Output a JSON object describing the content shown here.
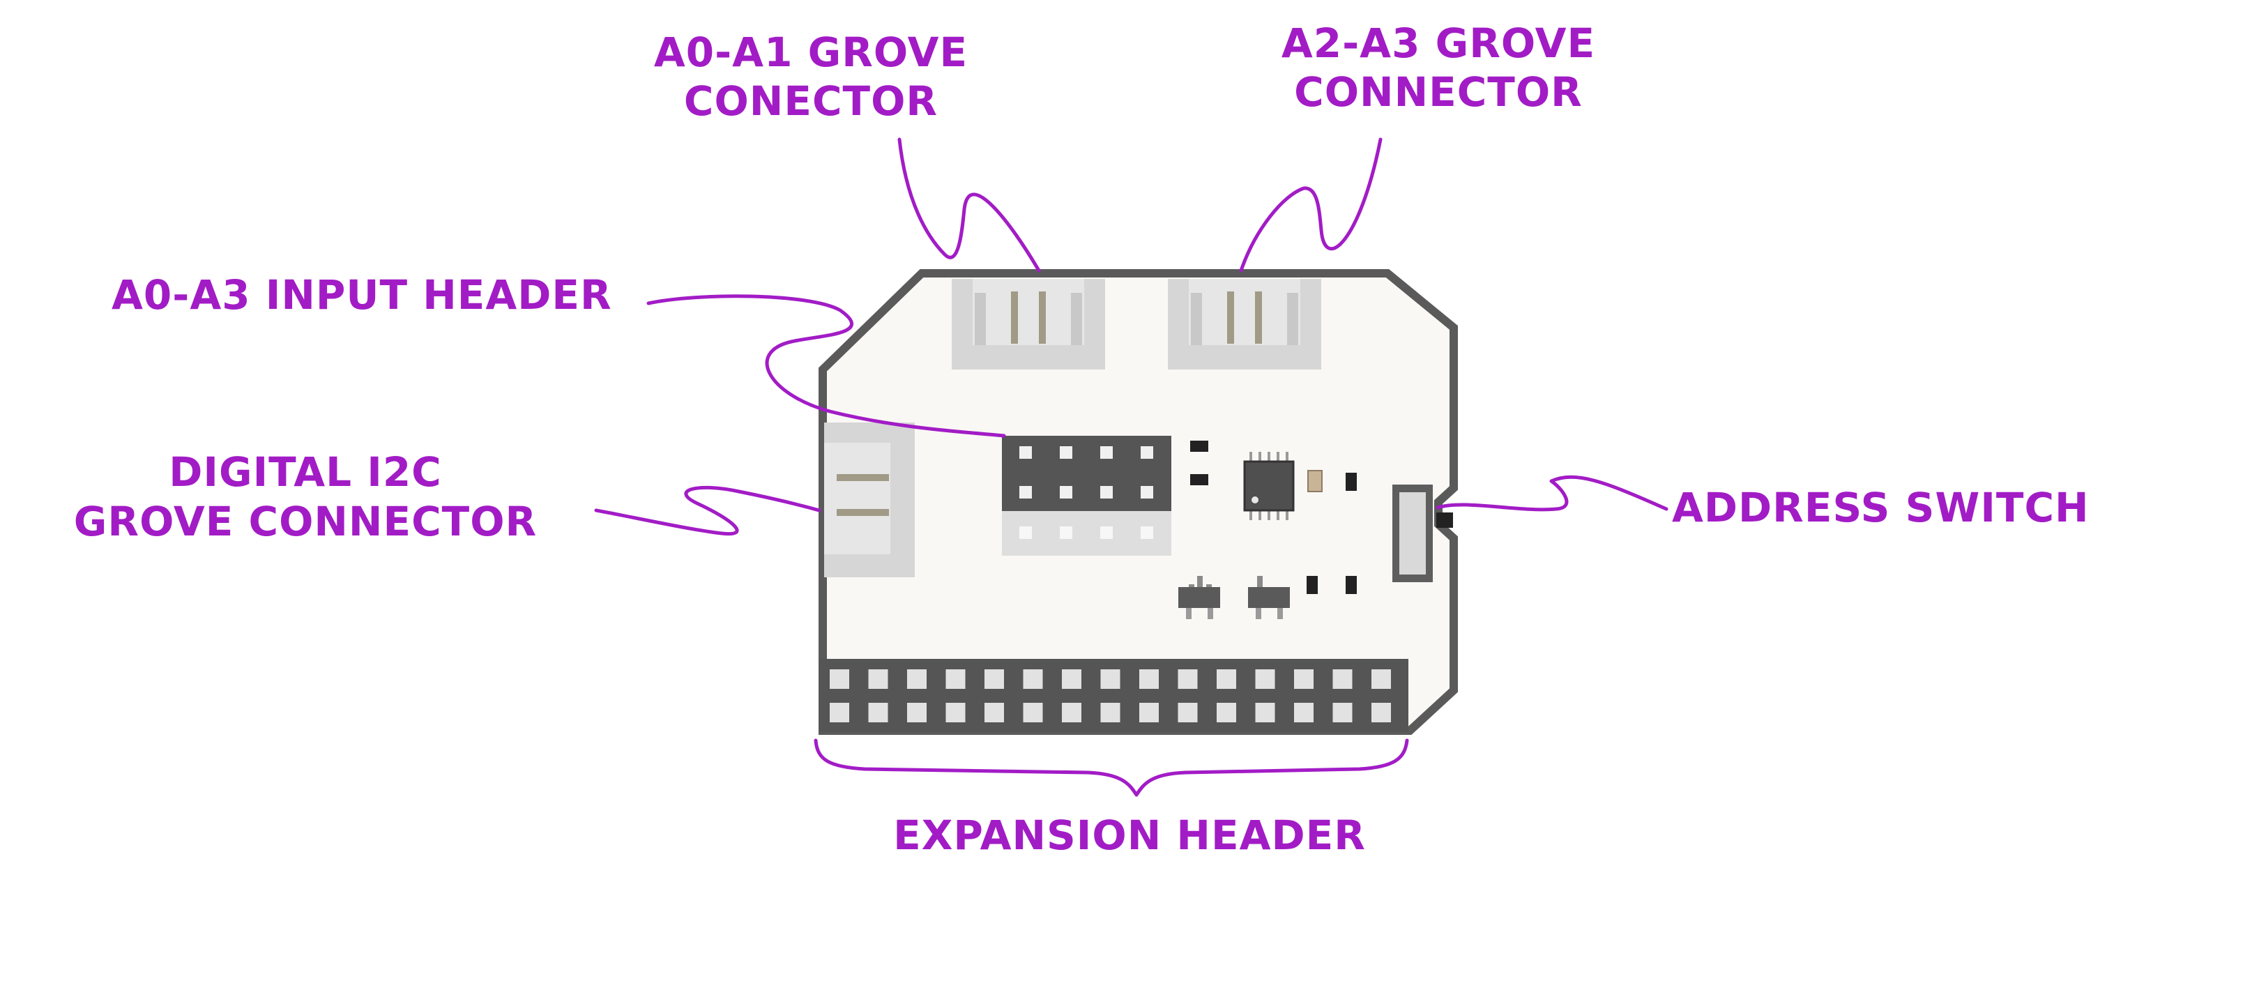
{
  "colors": {
    "label": "#a21cc6",
    "board_fill": "#faf8f5",
    "board_outline": "#5a5a5a",
    "connector": "#d6d6d6",
    "header_dark": "#555555",
    "pin": "#e2e2e2"
  },
  "labels": {
    "a0_a1_line1": "A0-A1 GROVE",
    "a0_a1_line2": "CONECTOR",
    "a2_a3_line1": "A2-A3 GROVE",
    "a2_a3_line2": "CONNECTOR",
    "input_header": "A0-A3 INPUT HEADER",
    "i2c_line1": "DIGITAL I2C",
    "i2c_line2": "GROVE CONNECTOR",
    "address_switch": "ADDRESS SWITCH",
    "expansion_header": "EXPANSION HEADER"
  },
  "components": {
    "expansion_header": {
      "rows": 2,
      "cols": 15
    },
    "input_header": {
      "rows": 3,
      "cols": 4
    }
  }
}
